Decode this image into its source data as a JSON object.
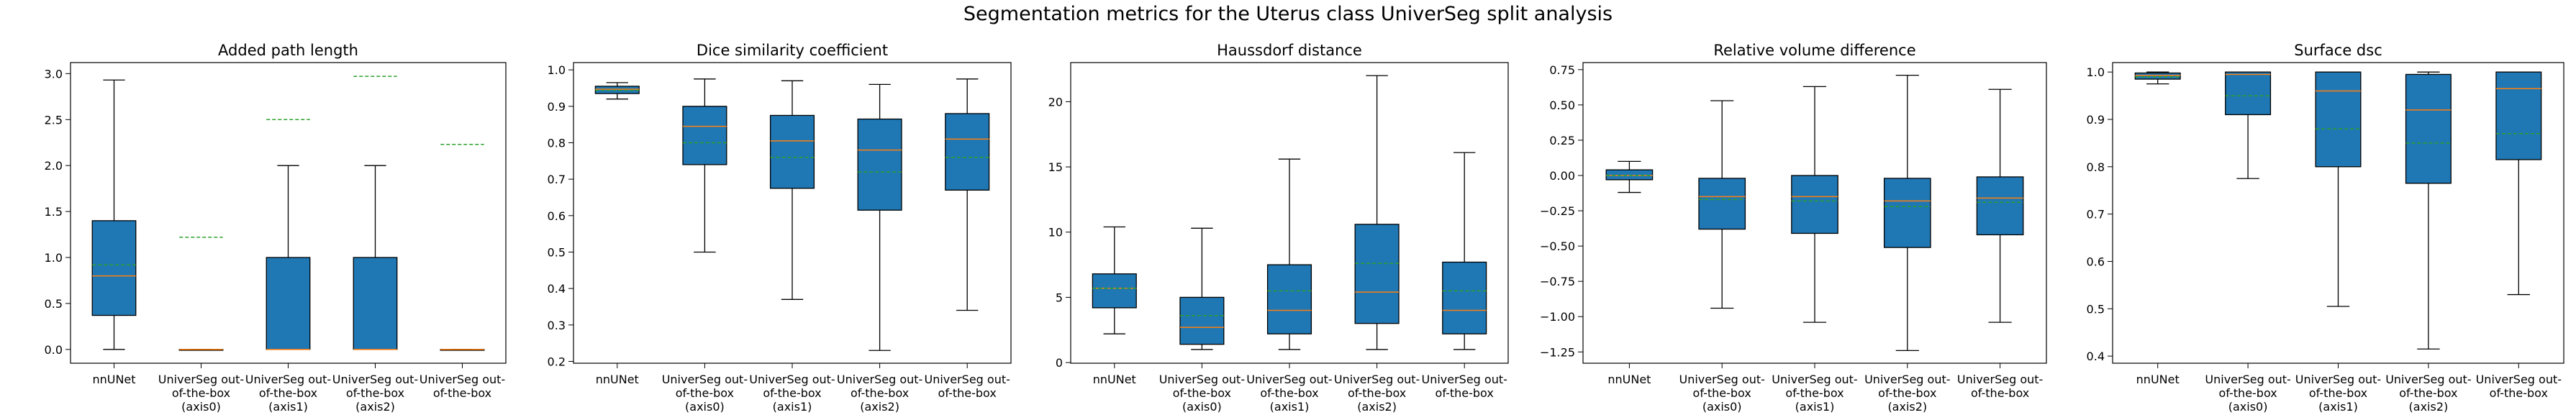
{
  "suptitle": "Segmentation metrics for the Uterus class UniverSeg split analysis",
  "colors": {
    "box_fill": "#1f77b4",
    "median": "#ff7f0e",
    "mean_line": "#2ca02c",
    "whisker": "#000000"
  },
  "chart_data": [
    {
      "type": "box",
      "title": "Added path length",
      "categories": [
        "nnUNet",
        "UniverSeg out-of-the-box (axis0)",
        "UniverSeg out-of-the-box (axis1)",
        "UniverSeg out-of-the-box (axis2)",
        "UniverSeg out-of-the-box"
      ],
      "category_lines": [
        [
          "nnUNet"
        ],
        [
          "UniverSeg out-",
          "of-the-box",
          "(axis0)"
        ],
        [
          "UniverSeg out-",
          "of-the-box",
          "(axis1)"
        ],
        [
          "UniverSeg out-",
          "of-the-box",
          "(axis2)"
        ],
        [
          "UniverSeg out-",
          "of-the-box"
        ]
      ],
      "ylim": [
        -0.15,
        3.12
      ],
      "yticks": [
        0.0,
        0.5,
        1.0,
        1.5,
        2.0,
        2.5,
        3.0
      ],
      "ytick_labels": [
        "0.0",
        "0.5",
        "1.0",
        "1.5",
        "2.0",
        "2.5",
        "3.0"
      ],
      "boxes": [
        {
          "whislo": 0.0,
          "q1": 0.37,
          "med": 0.8,
          "q3": 1.4,
          "whishi": 2.93,
          "mean": 0.92
        },
        {
          "whislo": 0.0,
          "q1": 0.0,
          "med": 0.0,
          "q3": 0.0,
          "whishi": 0.0,
          "mean": 1.22
        },
        {
          "whislo": 0.0,
          "q1": 0.0,
          "med": 0.0,
          "q3": 1.0,
          "whishi": 2.0,
          "mean": 2.5
        },
        {
          "whislo": 0.0,
          "q1": 0.0,
          "med": 0.0,
          "q3": 1.0,
          "whishi": 2.0,
          "mean": 2.97
        },
        {
          "whislo": 0.0,
          "q1": 0.0,
          "med": 0.0,
          "q3": 0.0,
          "whishi": 0.0,
          "mean": 2.23
        }
      ]
    },
    {
      "type": "box",
      "title": "Dice similarity coefficient",
      "categories": [
        "nnUNet",
        "UniverSeg out-of-the-box (axis0)",
        "UniverSeg out-of-the-box (axis1)",
        "UniverSeg out-of-the-box (axis2)",
        "UniverSeg out-of-the-box"
      ],
      "category_lines": [
        [
          "nnUNet"
        ],
        [
          "UniverSeg out-",
          "of-the-box",
          "(axis0)"
        ],
        [
          "UniverSeg out-",
          "of-the-box",
          "(axis1)"
        ],
        [
          "UniverSeg out-",
          "of-the-box",
          "(axis2)"
        ],
        [
          "UniverSeg out-",
          "of-the-box"
        ]
      ],
      "ylim": [
        0.195,
        1.02
      ],
      "yticks": [
        0.2,
        0.3,
        0.4,
        0.5,
        0.6,
        0.7,
        0.8,
        0.9,
        1.0
      ],
      "ytick_labels": [
        "0.2",
        "0.3",
        "0.4",
        "0.5",
        "0.6",
        "0.7",
        "0.8",
        "0.9",
        "1.0"
      ],
      "boxes": [
        {
          "whislo": 0.92,
          "q1": 0.935,
          "med": 0.947,
          "q3": 0.955,
          "whishi": 0.965,
          "mean": 0.944
        },
        {
          "whislo": 0.5,
          "q1": 0.74,
          "med": 0.845,
          "q3": 0.9,
          "whishi": 0.975,
          "mean": 0.8
        },
        {
          "whislo": 0.37,
          "q1": 0.675,
          "med": 0.805,
          "q3": 0.875,
          "whishi": 0.97,
          "mean": 0.76
        },
        {
          "whislo": 0.23,
          "q1": 0.615,
          "med": 0.78,
          "q3": 0.865,
          "whishi": 0.96,
          "mean": 0.72
        },
        {
          "whislo": 0.34,
          "q1": 0.67,
          "med": 0.81,
          "q3": 0.88,
          "whishi": 0.975,
          "mean": 0.76
        }
      ]
    },
    {
      "type": "box",
      "title": "Haussdorf distance",
      "categories": [
        "nnUNet",
        "UniverSeg out-of-the-box (axis0)",
        "UniverSeg out-of-the-box (axis1)",
        "UniverSeg out-of-the-box (axis2)",
        "UniverSeg out-of-the-box"
      ],
      "category_lines": [
        [
          "nnUNet"
        ],
        [
          "UniverSeg out-",
          "of-the-box",
          "(axis0)"
        ],
        [
          "UniverSeg out-",
          "of-the-box",
          "(axis1)"
        ],
        [
          "UniverSeg out-",
          "of-the-box",
          "(axis2)"
        ],
        [
          "UniverSeg out-",
          "of-the-box"
        ]
      ],
      "ylim": [
        -0.05,
        23.0
      ],
      "yticks": [
        0,
        5,
        10,
        15,
        20
      ],
      "ytick_labels": [
        "0",
        "5",
        "10",
        "15",
        "20"
      ],
      "boxes": [
        {
          "whislo": 2.2,
          "q1": 4.2,
          "med": 5.7,
          "q3": 6.8,
          "whishi": 10.4,
          "mean": 5.7
        },
        {
          "whislo": 1.0,
          "q1": 1.4,
          "med": 2.7,
          "q3": 5.0,
          "whishi": 10.3,
          "mean": 3.6
        },
        {
          "whislo": 1.0,
          "q1": 2.2,
          "med": 4.0,
          "q3": 7.5,
          "whishi": 15.6,
          "mean": 5.5
        },
        {
          "whislo": 1.0,
          "q1": 3.0,
          "med": 5.4,
          "q3": 10.6,
          "whishi": 22.0,
          "mean": 7.6
        },
        {
          "whislo": 1.0,
          "q1": 2.2,
          "med": 4.0,
          "q3": 7.7,
          "whishi": 16.1,
          "mean": 5.5
        }
      ]
    },
    {
      "type": "box",
      "title": "Relative volume difference",
      "categories": [
        "nnUNet",
        "UniverSeg out-of-the-box (axis0)",
        "UniverSeg out-of-the-box (axis1)",
        "UniverSeg out-of-the-box (axis2)",
        "UniverSeg out-of-the-box"
      ],
      "category_lines": [
        [
          "nnUNet"
        ],
        [
          "UniverSeg out-",
          "of-the-box",
          "(axis0)"
        ],
        [
          "UniverSeg out-",
          "of-the-box",
          "(axis1)"
        ],
        [
          "UniverSeg out-",
          "of-the-box",
          "(axis2)"
        ],
        [
          "UniverSeg out-",
          "of-the-box"
        ]
      ],
      "ylim": [
        -1.33,
        0.8
      ],
      "yticks": [
        -1.25,
        -1.0,
        -0.75,
        -0.5,
        -0.25,
        0.0,
        0.25,
        0.5,
        0.75
      ],
      "ytick_labels": [
        "−1.25",
        "−1.00",
        "−0.75",
        "−0.50",
        "−0.25",
        "0.00",
        "0.25",
        "0.50",
        "0.75"
      ],
      "boxes": [
        {
          "whislo": -0.12,
          "q1": -0.03,
          "med": 0.0,
          "q3": 0.04,
          "whishi": 0.1,
          "mean": 0.0
        },
        {
          "whislo": -0.94,
          "q1": -0.38,
          "med": -0.15,
          "q3": -0.02,
          "whishi": 0.53,
          "mean": -0.17
        },
        {
          "whislo": -1.04,
          "q1": -0.41,
          "med": -0.15,
          "q3": 0.0,
          "whishi": 0.63,
          "mean": -0.18
        },
        {
          "whislo": -1.24,
          "q1": -0.51,
          "med": -0.18,
          "q3": -0.02,
          "whishi": 0.71,
          "mean": -0.22
        },
        {
          "whislo": -1.04,
          "q1": -0.42,
          "med": -0.16,
          "q3": -0.01,
          "whishi": 0.61,
          "mean": -0.19
        }
      ]
    },
    {
      "type": "box",
      "title": "Surface dsc",
      "categories": [
        "nnUNet",
        "UniverSeg out-of-the-box (axis0)",
        "UniverSeg out-of-the-box (axis1)",
        "UniverSeg out-of-the-box (axis2)",
        "UniverSeg out-of-the-box"
      ],
      "category_lines": [
        [
          "nnUNet"
        ],
        [
          "UniverSeg out-",
          "of-the-box",
          "(axis0)"
        ],
        [
          "UniverSeg out-",
          "of-the-box",
          "(axis1)"
        ],
        [
          "UniverSeg out-",
          "of-the-box",
          "(axis2)"
        ],
        [
          "UniverSeg out-",
          "of-the-box"
        ]
      ],
      "ylim": [
        0.385,
        1.02
      ],
      "yticks": [
        0.4,
        0.5,
        0.6,
        0.7,
        0.8,
        0.9,
        1.0
      ],
      "ytick_labels": [
        "0.4",
        "0.5",
        "0.6",
        "0.7",
        "0.8",
        "0.9",
        "1.0"
      ],
      "boxes": [
        {
          "whislo": 0.975,
          "q1": 0.985,
          "med": 0.993,
          "q3": 0.998,
          "whishi": 1.0,
          "mean": 0.99
        },
        {
          "whislo": 0.775,
          "q1": 0.91,
          "med": 0.995,
          "q3": 1.0,
          "whishi": 1.0,
          "mean": 0.95
        },
        {
          "whislo": 0.505,
          "q1": 0.8,
          "med": 0.96,
          "q3": 1.0,
          "whishi": 1.0,
          "mean": 0.88
        },
        {
          "whislo": 0.415,
          "q1": 0.765,
          "med": 0.92,
          "q3": 0.995,
          "whishi": 1.0,
          "mean": 0.85
        },
        {
          "whislo": 0.53,
          "q1": 0.815,
          "med": 0.965,
          "q3": 1.0,
          "whishi": 1.0,
          "mean": 0.87
        }
      ]
    }
  ]
}
